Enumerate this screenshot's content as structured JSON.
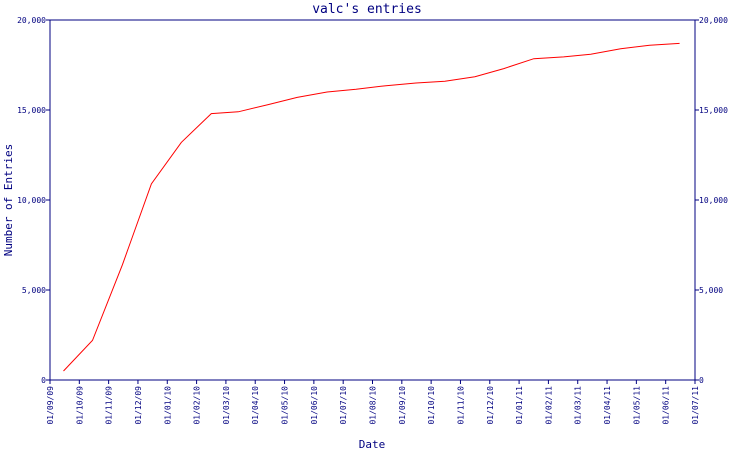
{
  "colors": {
    "axis": "#000080",
    "series_line": "#ff0000",
    "background": "#ffffff"
  },
  "chart_data": {
    "type": "line",
    "title": "valc's entries",
    "xlabel": "Date",
    "ylabel": "Number of Entries",
    "x_tick_labels": [
      "01/09/09",
      "01/10/09",
      "01/11/09",
      "01/12/09",
      "01/01/10",
      "01/02/10",
      "01/03/10",
      "01/04/10",
      "01/05/10",
      "01/06/10",
      "01/07/10",
      "01/08/10",
      "01/09/10",
      "01/10/10",
      "01/11/10",
      "01/12/10",
      "01/01/11",
      "01/02/11",
      "01/03/11",
      "01/04/11",
      "01/05/11",
      "01/06/11",
      "01/07/11"
    ],
    "y_ticks": [
      0,
      5000,
      10000,
      15000,
      20000
    ],
    "y_tick_labels": [
      "0",
      "5,000",
      "10,000",
      "15,000",
      "20,000"
    ],
    "ylim": [
      0,
      20000
    ],
    "xlim": [
      "2009-09-01",
      "2011-07-01"
    ],
    "grid": false,
    "series": [
      {
        "x": [
          "2009-09-15",
          "2009-10-15",
          "2009-11-15",
          "2009-12-15",
          "2010-01-15",
          "2010-02-15",
          "2010-03-15",
          "2010-04-15",
          "2010-05-15",
          "2010-06-15",
          "2010-07-15",
          "2010-08-15",
          "2010-09-15",
          "2010-10-15",
          "2010-11-15",
          "2010-12-15",
          "2011-01-15",
          "2011-02-15",
          "2011-03-15",
          "2011-04-15",
          "2011-05-15",
          "2011-06-15"
        ],
        "values": [
          500,
          2200,
          6400,
          10900,
          13200,
          14800,
          14900,
          15300,
          15700,
          16000,
          16150,
          16350,
          16500,
          16600,
          16850,
          17300,
          17850,
          17950,
          18100,
          18400,
          18600,
          18700
        ]
      }
    ]
  }
}
